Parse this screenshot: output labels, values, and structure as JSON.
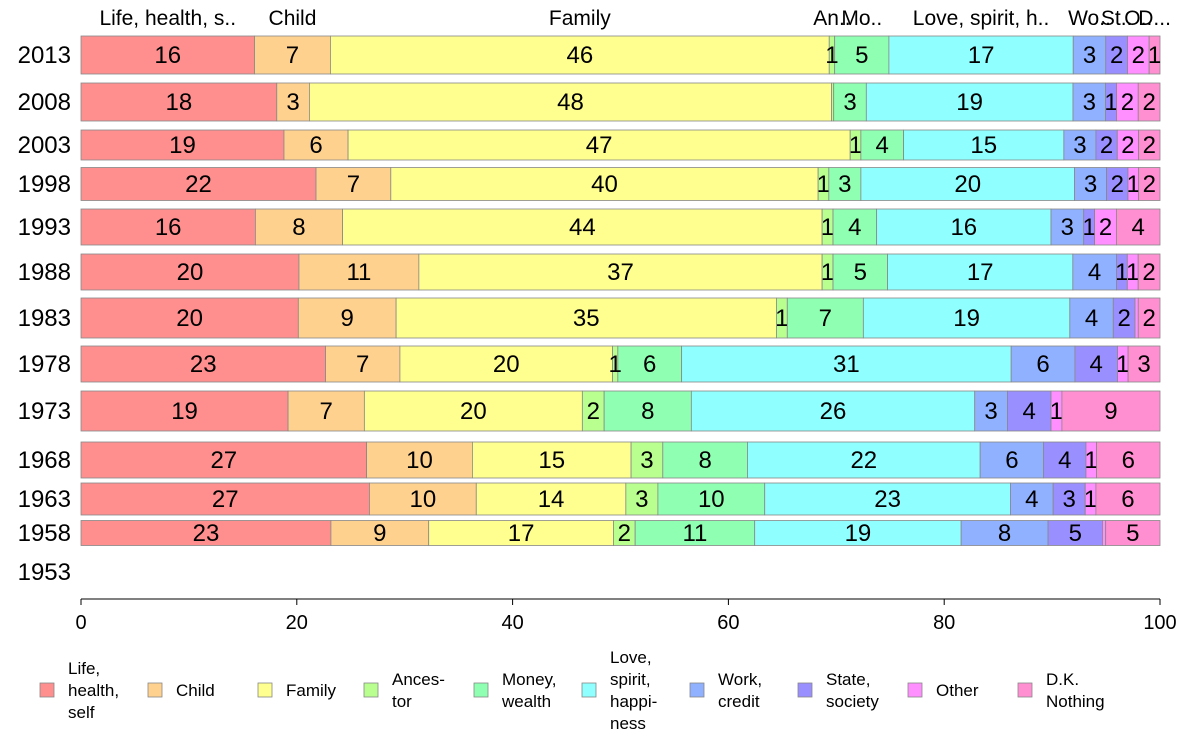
{
  "chart_data": {
    "type": "bar",
    "orientation": "horizontal",
    "stacked": "100%",
    "categories": [
      "2013",
      "2008",
      "2003",
      "1998",
      "1993",
      "1988",
      "1983",
      "1978",
      "1973",
      "1968",
      "1963",
      "1958",
      "1953"
    ],
    "series": [
      {
        "name": "Life, health, self",
        "top_label": "Life, health, s..",
        "legend_lines": [
          "Life,",
          "health,",
          "self"
        ],
        "color": "#ff8f8f",
        "values": [
          16,
          18,
          19,
          22,
          16,
          20,
          20,
          23,
          19,
          27,
          27,
          23,
          null
        ]
      },
      {
        "name": "Child",
        "top_label": "Child",
        "legend_lines": [
          "Child"
        ],
        "color": "#ffd18f",
        "values": [
          7,
          3,
          6,
          7,
          8,
          11,
          9,
          7,
          7,
          10,
          10,
          9,
          null
        ]
      },
      {
        "name": "Family",
        "top_label": "Family",
        "legend_lines": [
          "Family"
        ],
        "color": "#ffff8f",
        "values": [
          46,
          48,
          47,
          40,
          44,
          37,
          35,
          20,
          20,
          15,
          14,
          17,
          null
        ]
      },
      {
        "name": "Ancestor",
        "top_label": "An..",
        "legend_lines": [
          "Ances-",
          "tor"
        ],
        "color": "#b8ff8f",
        "values": [
          0.5,
          0.2,
          1,
          1,
          1,
          1,
          1,
          0.5,
          2,
          3,
          3,
          2,
          null
        ]
      },
      {
        "name": "Money, wealth",
        "top_label": "Mo..",
        "legend_lines": [
          "Money,",
          "wealth"
        ],
        "color": "#8fffb1",
        "values": [
          5,
          3,
          4,
          3,
          4,
          5,
          7,
          6,
          8,
          8,
          10,
          11,
          null
        ]
      },
      {
        "name": "Love, spirit, happiness",
        "top_label": "Love, spirit, h..",
        "legend_lines": [
          "Love,",
          "spirit,",
          "happi-",
          "ness"
        ],
        "color": "#8fffff",
        "values": [
          17,
          19,
          15,
          20,
          16,
          17,
          19,
          31,
          26,
          22,
          23,
          19,
          null
        ]
      },
      {
        "name": "Work, credit",
        "top_label": "Wo..",
        "legend_lines": [
          "Work,",
          "credit"
        ],
        "color": "#8fb1ff",
        "values": [
          3,
          3,
          3,
          3,
          3,
          4,
          4,
          6,
          3,
          6,
          4,
          8,
          null
        ]
      },
      {
        "name": "State, society",
        "top_label": "St..",
        "legend_lines": [
          "State,",
          "society"
        ],
        "color": "#9a8fff",
        "values": [
          2,
          1,
          2,
          2,
          1,
          1,
          2,
          4,
          4,
          4,
          3,
          5,
          null
        ]
      },
      {
        "name": "Other",
        "top_label": "O..",
        "legend_lines": [
          "Other"
        ],
        "color": "#ff8fff",
        "values": [
          2,
          2,
          2,
          1,
          2,
          1,
          0.3,
          1,
          1,
          1,
          1,
          0.3,
          null
        ]
      },
      {
        "name": "D.K. Nothing",
        "top_label": "D...",
        "legend_lines": [
          "D.K.",
          "Nothing"
        ],
        "color": "#ff8fd1",
        "values": [
          1,
          2,
          2,
          2,
          4,
          2,
          2,
          3,
          9,
          6,
          6,
          5,
          null
        ]
      }
    ],
    "data_labels": [
      [
        "16",
        "7",
        "46",
        "",
        "5",
        "17",
        "3",
        "2",
        "2",
        "1"
      ],
      [
        "18",
        "3",
        "48",
        "",
        "3",
        "19",
        "3",
        "1",
        "2",
        "2"
      ],
      [
        "19",
        "6",
        "47",
        "1",
        "4",
        "15",
        "3",
        "2",
        "2",
        "2"
      ],
      [
        "22",
        "7",
        "40",
        "1",
        "3",
        "20",
        "3",
        "2",
        "1",
        "2"
      ],
      [
        "16",
        "8",
        "44",
        "1",
        "4",
        "16",
        "3",
        "1",
        "2",
        "4"
      ],
      [
        "20",
        "11",
        "37",
        "1",
        "5",
        "17",
        "4",
        "1",
        "1",
        "2"
      ],
      [
        "20",
        "9",
        "35",
        "1",
        "7",
        "19",
        "4",
        "2",
        "",
        "2"
      ],
      [
        "23",
        "7",
        "20",
        "",
        "6",
        "31",
        "6",
        "4",
        "1",
        "3"
      ],
      [
        "19",
        "7",
        "20",
        "2",
        "8",
        "26",
        "3",
        "4",
        "1",
        "9"
      ],
      [
        "27",
        "10",
        "15",
        "3",
        "8",
        "22",
        "6",
        "4",
        "1",
        "6"
      ],
      [
        "27",
        "10",
        "14",
        "3",
        "10",
        "23",
        "4",
        "3",
        "1",
        "6"
      ],
      [
        "23",
        "9",
        "17",
        "2",
        "11",
        "19",
        "8",
        "5",
        "",
        "5"
      ],
      [
        "",
        "",
        "",
        "",
        "",
        "",
        "",
        "",
        "",
        ""
      ]
    ],
    "extra_labels": [
      {
        "row": 0,
        "series": 3,
        "text": "1"
      },
      {
        "row": 7,
        "series": 3,
        "text": "1"
      }
    ],
    "x_ticks": [
      "0",
      "20",
      "40",
      "60",
      "80",
      "100"
    ],
    "xlim": [
      0,
      100
    ],
    "legend_position": "bottom",
    "grid": false
  }
}
